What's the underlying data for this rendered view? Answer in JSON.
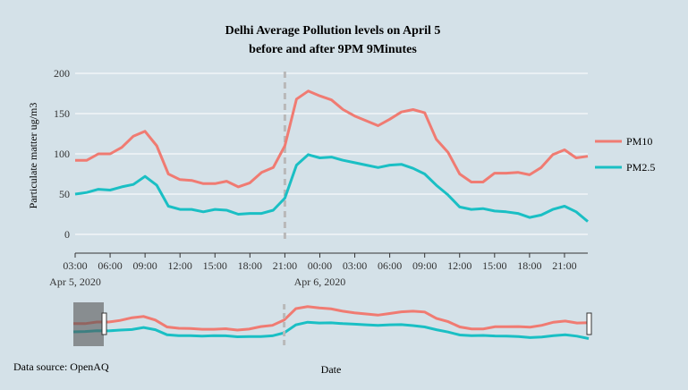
{
  "chart_data": {
    "type": "line",
    "title_line1": "Delhi Average Pollution levels on April 5",
    "title_line2": "before and after 9PM 9Minutes",
    "ylabel": "Particulate matter ug/m3",
    "xlabel": "Date",
    "ylim": [
      0,
      200
    ],
    "yticks": [
      0,
      50,
      100,
      150,
      200
    ],
    "xticks": [
      "03:00",
      "06:00",
      "09:00",
      "12:00",
      "15:00",
      "18:00",
      "21:00",
      "00:00",
      "03:00",
      "06:00",
      "09:00",
      "12:00",
      "15:00",
      "18:00",
      "21:00"
    ],
    "date_labels": [
      "Apr 5, 2020",
      "Apr 6, 2020"
    ],
    "event_marker_time": "21:00",
    "source": "Data source: OpenAQ",
    "colors": {
      "PM10": "#f07b72",
      "PM2.5": "#1abfc4"
    },
    "series": [
      {
        "name": "PM10",
        "color": "#f07b72",
        "values": [
          92,
          92,
          100,
          100,
          108,
          122,
          128,
          110,
          75,
          68,
          67,
          63,
          63,
          66,
          59,
          64,
          77,
          83,
          110,
          168,
          178,
          172,
          167,
          155,
          147,
          141,
          135,
          143,
          152,
          155,
          151,
          118,
          102,
          75,
          65,
          65,
          76,
          76,
          77,
          74,
          83,
          99,
          105,
          95,
          97
        ]
      },
      {
        "name": "PM2.5",
        "color": "#1abfc4",
        "values": [
          50,
          52,
          56,
          55,
          59,
          62,
          72,
          61,
          35,
          31,
          31,
          28,
          31,
          30,
          25,
          26,
          26,
          30,
          45,
          86,
          99,
          95,
          96,
          92,
          89,
          86,
          83,
          86,
          87,
          82,
          75,
          61,
          49,
          34,
          31,
          32,
          29,
          28,
          26,
          21,
          24,
          31,
          35,
          28,
          16
        ]
      }
    ]
  }
}
